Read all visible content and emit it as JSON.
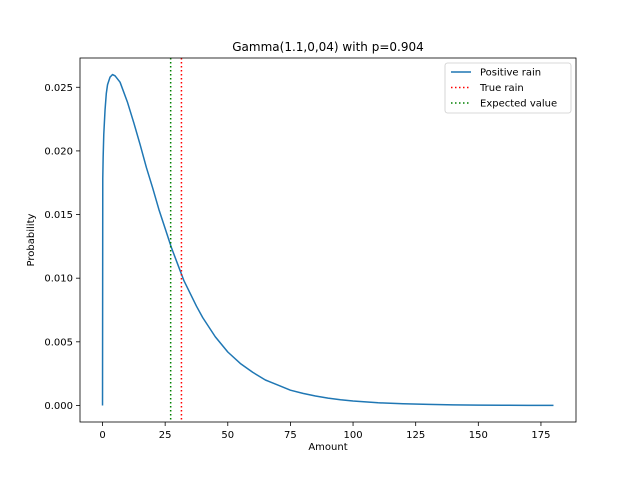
{
  "chart_data": {
    "type": "line",
    "title": "Gamma(1.1,0,04) with p=0.904",
    "xlabel": "Amount",
    "ylabel": "Probability",
    "xlim": [
      -8.99,
      188.99
    ],
    "ylim": [
      -0.0013,
      0.0273
    ],
    "xticks": [
      0,
      25,
      50,
      75,
      100,
      125,
      150,
      175
    ],
    "yticks": [
      0.0,
      0.005,
      0.01,
      0.015,
      0.02,
      0.025
    ],
    "xtick_labels": [
      "0",
      "25",
      "50",
      "75",
      "100",
      "125",
      "150",
      "175"
    ],
    "ytick_labels": [
      "0.000",
      "0.005",
      "0.010",
      "0.015",
      "0.020",
      "0.025"
    ],
    "legend_position": "top-right",
    "series": [
      {
        "name": "Positive rain",
        "style": "solid",
        "color": "#1f77b4",
        "x": [
          0,
          0.1,
          0.25,
          0.5,
          1,
          1.5,
          2,
          3,
          4,
          5,
          7,
          10,
          12.5,
          15,
          17.5,
          20,
          22.5,
          25,
          27.5,
          30,
          32.5,
          35,
          37.5,
          40,
          45,
          50,
          55,
          60,
          65,
          70,
          75,
          80,
          85,
          90,
          95,
          100,
          110,
          120,
          130,
          140,
          150,
          160,
          170,
          180
        ],
        "y": [
          0.0,
          0.0178,
          0.0195,
          0.0213,
          0.0232,
          0.0245,
          0.0252,
          0.0258,
          0.026,
          0.0259,
          0.0254,
          0.0238,
          0.0222,
          0.0205,
          0.0187,
          0.0171,
          0.0154,
          0.0139,
          0.0124,
          0.0111,
          0.0098,
          0.0088,
          0.0078,
          0.0069,
          0.0054,
          0.0042,
          0.0033,
          0.0026,
          0.002,
          0.0016,
          0.0012,
          0.00095,
          0.00074,
          0.00058,
          0.00045,
          0.00035,
          0.00021,
          0.00013,
          8e-05,
          5e-05,
          3e-05,
          2e-05,
          1e-05,
          1e-05
        ]
      },
      {
        "name": "True rain",
        "style": "dotted",
        "color": "#ff0000",
        "x_value": 31.5
      },
      {
        "name": "Expected value",
        "style": "dotted",
        "color": "#008000",
        "x_value": 27.2
      }
    ]
  }
}
